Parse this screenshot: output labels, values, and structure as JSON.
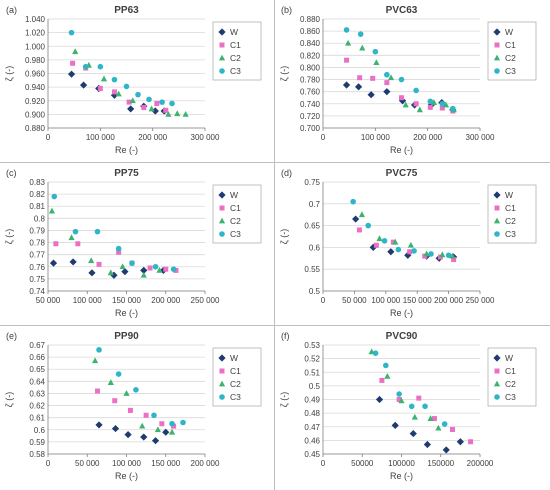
{
  "colors": {
    "W": "#1f3b6f",
    "C1": "#ec6fc6",
    "C2": "#3cb371",
    "C3": "#2eb5c7",
    "grid": "#d9d9d9",
    "axis": "#7f7f7f"
  },
  "chart_data": [
    {
      "type": "scatter",
      "panel_label": "(a)",
      "title": "PP63",
      "xlabel": "Re (-)",
      "ylabel": "ζ (-)",
      "xlim": [
        0,
        300000
      ],
      "ylim": [
        0.88,
        1.04
      ],
      "xticks": [
        0,
        100000,
        200000,
        300000
      ],
      "xtick_labels": [
        "0",
        "100 000",
        "200 000",
        "300 000"
      ],
      "yticks": [
        0.88,
        0.9,
        0.92,
        0.94,
        0.96,
        0.98,
        1.0,
        1.02,
        1.04
      ],
      "ytick_labels": [
        "0.880",
        "0.900",
        "0.920",
        "0.940",
        "0.960",
        "0.980",
        "1.000",
        "1.020",
        "1.040"
      ],
      "grid": "horizontal",
      "legend": "upper-right",
      "series": [
        {
          "name": "W",
          "marker": "diamond",
          "x": [
            45000,
            68000,
            97000,
            127000,
            158000,
            183000,
            205000,
            222000
          ],
          "y": [
            0.959,
            0.943,
            0.938,
            0.928,
            0.908,
            0.912,
            0.905,
            0.905
          ]
        },
        {
          "name": "C1",
          "marker": "square",
          "x": [
            47000,
            72000,
            100000,
            127000,
            155000,
            183000,
            208000,
            225000
          ],
          "y": [
            0.975,
            0.968,
            0.938,
            0.933,
            0.918,
            0.91,
            0.916,
            0.906
          ]
        },
        {
          "name": "C2",
          "marker": "triangle",
          "x": [
            52000,
            78000,
            107000,
            135000,
            162000,
            198000,
            230000,
            247000,
            263000
          ],
          "y": [
            0.992,
            0.972,
            0.952,
            0.93,
            0.92,
            0.908,
            0.9,
            0.901,
            0.9
          ]
        },
        {
          "name": "C3",
          "marker": "circle",
          "x": [
            45000,
            72000,
            100000,
            127000,
            150000,
            172000,
            193000,
            218000,
            237000
          ],
          "y": [
            1.02,
            0.97,
            0.97,
            0.951,
            0.941,
            0.929,
            0.922,
            0.918,
            0.916
          ]
        }
      ]
    },
    {
      "type": "scatter",
      "panel_label": "(b)",
      "title": "PVC63",
      "xlabel": "Re (-)",
      "ylabel": "ζ (-)",
      "xlim": [
        0,
        300000
      ],
      "ylim": [
        0.7,
        0.88
      ],
      "xticks": [
        0,
        100000,
        200000,
        300000
      ],
      "xtick_labels": [
        "0",
        "100 000",
        "200 000",
        "300 000"
      ],
      "yticks": [
        0.7,
        0.72,
        0.74,
        0.76,
        0.78,
        0.8,
        0.82,
        0.84,
        0.86,
        0.88
      ],
      "ytick_labels": [
        "0.700",
        "0.720",
        "0.740",
        "0.760",
        "0.780",
        "0.800",
        "0.820",
        "0.840",
        "0.860",
        "0.880"
      ],
      "grid": "horizontal",
      "legend": "upper-right",
      "series": [
        {
          "name": "W",
          "marker": "diamond",
          "x": [
            45000,
            68000,
            92000,
            122000,
            152000,
            175000,
            207000,
            227000,
            248000
          ],
          "y": [
            0.771,
            0.768,
            0.755,
            0.76,
            0.745,
            0.738,
            0.738,
            0.742,
            0.73
          ]
        },
        {
          "name": "C1",
          "marker": "square",
          "x": [
            45000,
            70000,
            95000,
            122000,
            150000,
            178000,
            205000,
            228000,
            248000
          ],
          "y": [
            0.812,
            0.783,
            0.782,
            0.775,
            0.75,
            0.74,
            0.734,
            0.733,
            0.728
          ]
        },
        {
          "name": "C2",
          "marker": "triangle",
          "x": [
            48000,
            75000,
            102000,
            130000,
            158000,
            185000,
            212000,
            235000,
            250000
          ],
          "y": [
            0.84,
            0.832,
            0.808,
            0.783,
            0.738,
            0.73,
            0.742,
            0.738,
            0.73
          ]
        },
        {
          "name": "C3",
          "marker": "circle",
          "x": [
            45000,
            72000,
            100000,
            122000,
            150000,
            178000,
            205000,
            228000,
            248000
          ],
          "y": [
            0.862,
            0.855,
            0.826,
            0.788,
            0.78,
            0.762,
            0.744,
            0.74,
            0.732
          ]
        }
      ]
    },
    {
      "type": "scatter",
      "panel_label": "(c)",
      "title": "PP75",
      "xlabel": "Re (-)",
      "ylabel": "ζ (-)",
      "xlim": [
        50000,
        250000
      ],
      "ylim": [
        0.74,
        0.83
      ],
      "xticks": [
        50000,
        100000,
        150000,
        200000,
        250000
      ],
      "xtick_labels": [
        "50 000",
        "100 000",
        "150 000",
        "200 000",
        "250 000"
      ],
      "yticks": [
        0.74,
        0.75,
        0.76,
        0.77,
        0.78,
        0.79,
        0.8,
        0.81,
        0.82,
        0.83
      ],
      "ytick_labels": [
        "0.74",
        "0.75",
        "0.76",
        "0.77",
        "0.78",
        "0.79",
        "0.8",
        "0.81",
        "0.82",
        "0.83"
      ],
      "grid": "horizontal",
      "legend": "upper-right",
      "series": [
        {
          "name": "W",
          "marker": "diamond",
          "x": [
            57000,
            82000,
            106000,
            134000,
            148000,
            172000,
            197000
          ],
          "y": [
            0.763,
            0.764,
            0.755,
            0.753,
            0.756,
            0.757,
            0.757
          ]
        },
        {
          "name": "C1",
          "marker": "square",
          "x": [
            60000,
            88000,
            115000,
            140000,
            157000,
            180000,
            200000,
            213000
          ],
          "y": [
            0.779,
            0.779,
            0.762,
            0.772,
            0.763,
            0.759,
            0.758,
            0.757
          ]
        },
        {
          "name": "C2",
          "marker": "triangle",
          "x": [
            55000,
            80000,
            105000,
            130000,
            145000,
            172000,
            192000
          ],
          "y": [
            0.806,
            0.784,
            0.765,
            0.755,
            0.76,
            0.753,
            0.757
          ]
        },
        {
          "name": "C3",
          "marker": "circle",
          "x": [
            58000,
            85000,
            113000,
            140000,
            157000,
            187000,
            210000
          ],
          "y": [
            0.818,
            0.789,
            0.789,
            0.775,
            0.763,
            0.76,
            0.758
          ]
        }
      ]
    },
    {
      "type": "scatter",
      "panel_label": "(d)",
      "title": "PVC75",
      "xlabel": "Re (-)",
      "ylabel": "ζ (-)",
      "xlim": [
        0,
        250000
      ],
      "ylim": [
        0.5,
        0.75
      ],
      "xticks": [
        0,
        50000,
        100000,
        150000,
        200000,
        250000
      ],
      "xtick_labels": [
        "0",
        "50 000",
        "100 000",
        "150 000",
        "200 000",
        "250 000"
      ],
      "yticks": [
        0.5,
        0.55,
        0.6,
        0.65,
        0.7,
        0.75
      ],
      "ytick_labels": [
        "0.5",
        "0.55",
        "0.6",
        "0.65",
        "0.7",
        "0.75"
      ],
      "grid": "horizontal",
      "legend": "upper-right",
      "series": [
        {
          "name": "W",
          "marker": "diamond",
          "x": [
            52000,
            80000,
            108000,
            135000,
            165000,
            185000,
            208000
          ],
          "y": [
            0.665,
            0.6,
            0.59,
            0.582,
            0.58,
            0.575,
            0.578
          ]
        },
        {
          "name": "C1",
          "marker": "square",
          "x": [
            58000,
            85000,
            112000,
            138000,
            162000,
            187000,
            208000
          ],
          "y": [
            0.64,
            0.605,
            0.612,
            0.59,
            0.58,
            0.578,
            0.572
          ]
        },
        {
          "name": "C2",
          "marker": "triangle",
          "x": [
            62000,
            90000,
            115000,
            140000,
            165000,
            190000,
            206000
          ],
          "y": [
            0.675,
            0.62,
            0.612,
            0.605,
            0.585,
            0.583,
            0.58
          ]
        },
        {
          "name": "C3",
          "marker": "circle",
          "x": [
            48000,
            72000,
            98000,
            120000,
            145000,
            172000,
            200000
          ],
          "y": [
            0.705,
            0.65,
            0.615,
            0.595,
            0.592,
            0.585,
            0.582
          ]
        }
      ]
    },
    {
      "type": "scatter",
      "panel_label": "(e)",
      "title": "PP90",
      "xlabel": "Re (-)",
      "ylabel": "ζ (-)",
      "xlim": [
        0,
        200000
      ],
      "ylim": [
        0.58,
        0.67
      ],
      "xticks": [
        0,
        50000,
        100000,
        150000,
        200000
      ],
      "xtick_labels": [
        "0",
        "50 000",
        "100 000",
        "150 000",
        "200 000"
      ],
      "yticks": [
        0.58,
        0.59,
        0.6,
        0.61,
        0.62,
        0.63,
        0.64,
        0.65,
        0.66,
        0.67
      ],
      "ytick_labels": [
        "0.58",
        "0.59",
        "0.6",
        "0.61",
        "0.62",
        "0.63",
        "0.64",
        "0.65",
        "0.66",
        "0.67"
      ],
      "grid": "horizontal",
      "legend": "upper-right",
      "series": [
        {
          "name": "W",
          "marker": "diamond",
          "x": [
            65000,
            86000,
            102000,
            122000,
            137000,
            150000
          ],
          "y": [
            0.604,
            0.601,
            0.596,
            0.594,
            0.591,
            0.598
          ]
        },
        {
          "name": "C1",
          "marker": "square",
          "x": [
            63000,
            85000,
            105000,
            125000,
            145000,
            160000
          ],
          "y": [
            0.632,
            0.624,
            0.616,
            0.612,
            0.605,
            0.603
          ]
        },
        {
          "name": "C2",
          "marker": "triangle",
          "x": [
            60000,
            80000,
            100000,
            120000,
            140000,
            158000
          ],
          "y": [
            0.657,
            0.639,
            0.63,
            0.603,
            0.6,
            0.598
          ]
        },
        {
          "name": "C3",
          "marker": "circle",
          "x": [
            65000,
            90000,
            112000,
            135000,
            158000,
            172000
          ],
          "y": [
            0.666,
            0.646,
            0.633,
            0.612,
            0.605,
            0.606
          ]
        }
      ]
    },
    {
      "type": "scatter",
      "panel_label": "(f)",
      "title": "PVC90",
      "xlabel": "Re (-)",
      "ylabel": "ζ (-)",
      "xlim": [
        0,
        200000
      ],
      "ylim": [
        0.45,
        0.53
      ],
      "xticks": [
        0,
        50000,
        100000,
        150000,
        200000
      ],
      "xtick_labels": [
        "0",
        "50000",
        "100000",
        "150000",
        "200000"
      ],
      "yticks": [
        0.45,
        0.46,
        0.47,
        0.48,
        0.49,
        0.5,
        0.51,
        0.52,
        0.53
      ],
      "ytick_labels": [
        "0.45",
        "0.46",
        "0.47",
        "0.48",
        "0.49",
        "0.5",
        "0.51",
        "0.52",
        "0.53"
      ],
      "grid": "horizontal",
      "legend": "upper-right",
      "series": [
        {
          "name": "W",
          "marker": "diamond",
          "x": [
            72000,
            92000,
            115000,
            133000,
            157000,
            175000
          ],
          "y": [
            0.49,
            0.471,
            0.465,
            0.457,
            0.453,
            0.459
          ]
        },
        {
          "name": "C1",
          "marker": "square",
          "x": [
            75000,
            97000,
            122000,
            142000,
            165000,
            188000
          ],
          "y": [
            0.504,
            0.49,
            0.491,
            0.476,
            0.468,
            0.459
          ]
        },
        {
          "name": "C2",
          "marker": "triangle",
          "x": [
            62000,
            82000,
            100000,
            117000,
            137000,
            147000
          ],
          "y": [
            0.525,
            0.507,
            0.489,
            0.477,
            0.476,
            0.469
          ]
        },
        {
          "name": "C3",
          "marker": "circle",
          "x": [
            67000,
            80000,
            97000,
            113000,
            130000,
            155000
          ],
          "y": [
            0.524,
            0.515,
            0.494,
            0.485,
            0.485,
            0.472
          ]
        }
      ]
    }
  ]
}
